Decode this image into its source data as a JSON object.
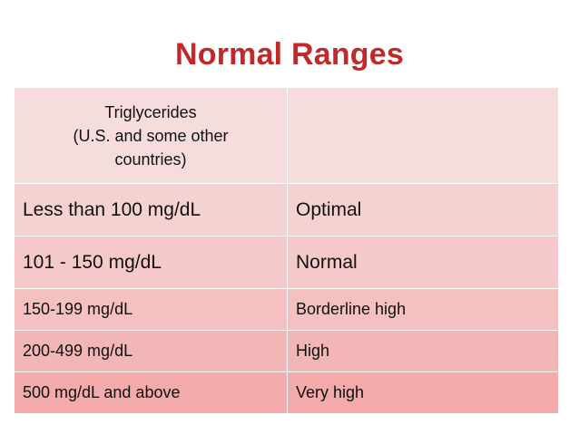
{
  "slide": {
    "title": "Normal Ranges"
  },
  "table": {
    "header": {
      "label_lines": [
        "Triglycerides",
        "(U.S. and some other",
        "countries)"
      ],
      "second_column": ""
    },
    "rows": [
      {
        "range": "Less than 100 mg/dL",
        "category": "Optimal"
      },
      {
        "range": "101 - 150 mg/dL",
        "category": "Normal"
      },
      {
        "range": "150-199 mg/dL",
        "category": "Borderline high"
      },
      {
        "range": "200-499 mg/dL",
        "category": "High"
      },
      {
        "range": "500 mg/dL and above",
        "category": "Very high"
      }
    ],
    "colors": {
      "title": "#c0282a",
      "row_fill_light": "#f6dcdc",
      "row_fill_dark": "#f2aaaa"
    }
  }
}
